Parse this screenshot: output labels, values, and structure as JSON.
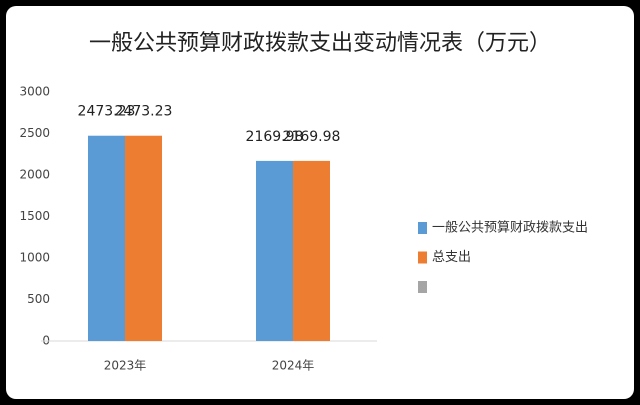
{
  "chart_data": {
    "type": "bar",
    "title": "一般公共预算财政拨款支出变动情况表（万元）",
    "categories": [
      "2023年",
      "2024年"
    ],
    "series": [
      {
        "name": "一般公共预算财政拨款支出",
        "color": "#5b9bd5",
        "values": [
          2473.23,
          2169.98
        ]
      },
      {
        "name": "总支出",
        "color": "#ed7d31",
        "values": [
          2473.23,
          2169.98
        ]
      },
      {
        "name": null,
        "color": "#a5a5a5",
        "values": [
          null,
          null
        ]
      }
    ],
    "ylim": [
      0,
      3000
    ],
    "yticks": [
      0,
      500,
      1000,
      1500,
      2000,
      2500,
      3000
    ],
    "grid": false,
    "legend": "right"
  }
}
